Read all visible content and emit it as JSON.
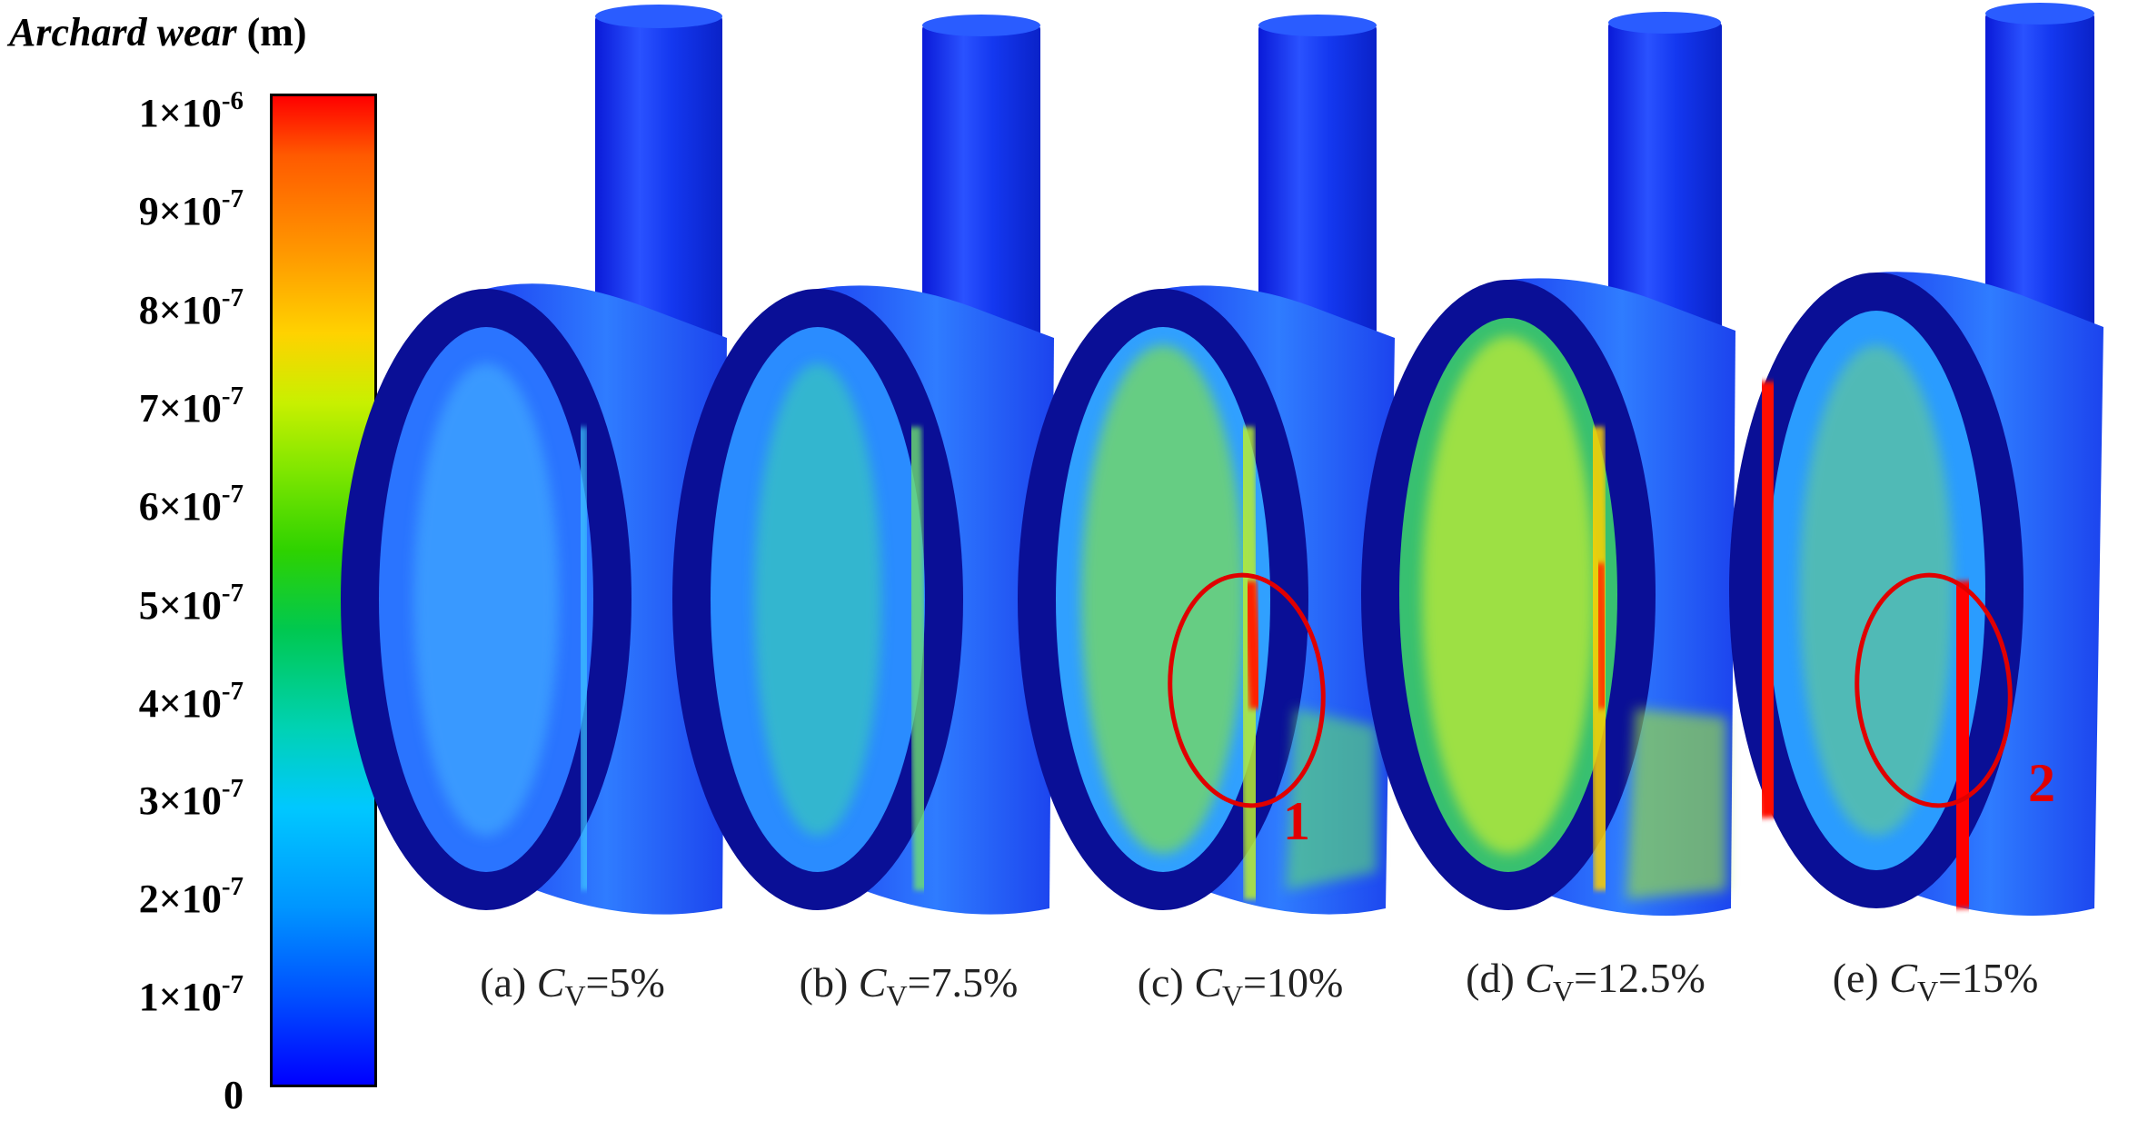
{
  "legend": {
    "title_italic": "Archard wear",
    "title_unit": "(m)",
    "ticks": [
      {
        "base": "1×10",
        "exp": "-6"
      },
      {
        "base": "9×10",
        "exp": "-7"
      },
      {
        "base": "8×10",
        "exp": "-7"
      },
      {
        "base": "7×10",
        "exp": "-7"
      },
      {
        "base": "6×10",
        "exp": "-7"
      },
      {
        "base": "5×10",
        "exp": "-7"
      },
      {
        "base": "4×10",
        "exp": "-7"
      },
      {
        "base": "3×10",
        "exp": "-7"
      },
      {
        "base": "2×10",
        "exp": "-7"
      },
      {
        "base": "1×10",
        "exp": "-7"
      },
      {
        "base": "0",
        "exp": ""
      }
    ],
    "colors": [
      "#ff0000",
      "#ff9900",
      "#ffd200",
      "#7ee600",
      "#00c850",
      "#00c8ff",
      "#0050ff",
      "#0000ff"
    ]
  },
  "panels": [
    {
      "prefix": "(a) ",
      "var": "C",
      "sub": "V",
      "value": "=5%"
    },
    {
      "prefix": "(b) ",
      "var": "C",
      "sub": "V",
      "value": "=7.5%"
    },
    {
      "prefix": "(c) ",
      "var": "C",
      "sub": "V",
      "value": "=10%"
    },
    {
      "prefix": "(d) ",
      "var": "C",
      "sub": "V",
      "value": "=12.5%"
    },
    {
      "prefix": "(e) ",
      "var": "C",
      "sub": "V",
      "value": "=15%"
    }
  ],
  "markers": {
    "first": "1",
    "second": "2"
  }
}
